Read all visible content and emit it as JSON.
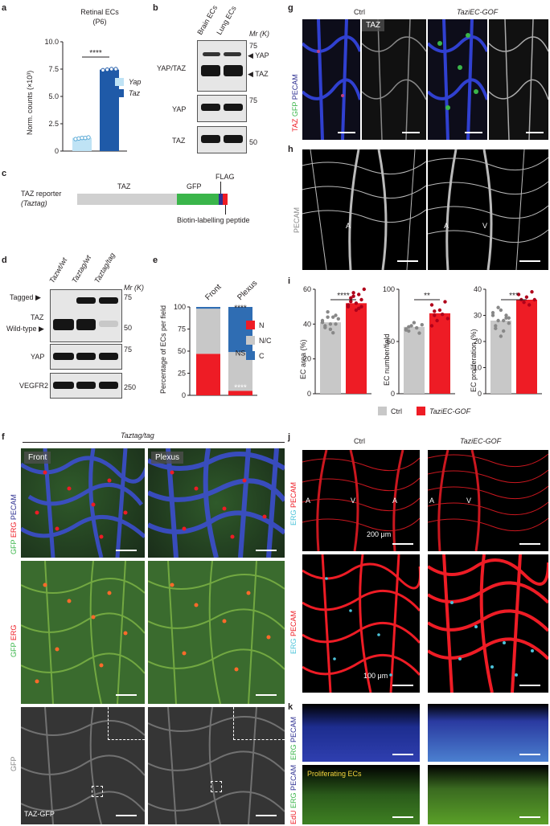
{
  "panels": {
    "a": {
      "letter": "a",
      "title": "Retinal ECs",
      "subtitle": "(P6)",
      "ylabel": "Norm. counts (×10³)",
      "sig": "****",
      "legend": [
        {
          "name": "Yap",
          "color": "#bfe3f5"
        },
        {
          "name": "Taz",
          "color": "#1f5aa8"
        }
      ]
    },
    "b": {
      "letter": "b",
      "lanes": [
        "Brain ECs",
        "Lung ECs"
      ],
      "mr": "Mr (K)",
      "rows": [
        {
          "label": "YAP/TAZ",
          "arrows": [
            "YAP",
            "TAZ"
          ],
          "markers": [
            "75"
          ]
        },
        {
          "label": "YAP",
          "markers": [
            "75"
          ]
        },
        {
          "label": "TAZ",
          "markers": [
            "50"
          ]
        }
      ]
    },
    "c": {
      "letter": "c",
      "title1": "TAZ reporter",
      "title2": "(Taztag)",
      "seg_taz": "TAZ",
      "seg_gfp": "GFP",
      "flag": "FLAG",
      "biotin": "Biotin-labelling peptide"
    },
    "d": {
      "letter": "d",
      "lanes": [
        "Tazwt/wt",
        "Taztag/wt",
        "Taztag/tag"
      ],
      "mr": "Mr (K)",
      "tagged": "Tagged",
      "wildtype": "Wild-type",
      "rows": [
        {
          "label": "TAZ",
          "markers": [
            "75",
            "50"
          ]
        },
        {
          "label": "YAP",
          "markers": [
            "75"
          ]
        },
        {
          "label": "VEGFR2",
          "markers": [
            "250"
          ]
        }
      ]
    },
    "e": {
      "letter": "e",
      "ylabel": "Percentage of ECs per field",
      "groups": [
        "Front",
        "Plexus"
      ],
      "sig_top": "****",
      "sig_mid": "NS",
      "sig_bot": "****",
      "legend": [
        {
          "name": "N",
          "color": "#ee1c25"
        },
        {
          "name": "N/C",
          "color": "#c8c8c8"
        },
        {
          "name": "C",
          "color": "#2f6db3"
        }
      ]
    },
    "f": {
      "letter": "f",
      "genotype": "Taztag/tag",
      "tags": [
        "Front",
        "Plexus"
      ],
      "row_labels": [
        "GFP ERG PECAM",
        "GFP ERG",
        "GFP"
      ],
      "bottom_tag": "TAZ-GFP"
    },
    "g": {
      "letter": "g",
      "ctrl": "Ctrl",
      "gof": "TaziEC-GOF",
      "tag": "TAZ",
      "row_label": "TAZ GFP PECAM"
    },
    "h": {
      "letter": "h",
      "row_label": "PECAM",
      "a_lbl": "A",
      "v_lbl": "V"
    },
    "i": {
      "letter": "i",
      "plots": [
        {
          "ylabel": "EC area (%)",
          "sig": "****"
        },
        {
          "ylabel": "EC number/field",
          "sig": "**"
        },
        {
          "ylabel": "EC proliferation (%)",
          "sig": "***"
        }
      ],
      "legend": [
        {
          "name": "Ctrl",
          "color": "#c8c8c8"
        },
        {
          "name": "TaziEC-GOF",
          "color": "#ee1c25"
        }
      ]
    },
    "j": {
      "letter": "j",
      "ctrl": "Ctrl",
      "gof": "TaziEC-GOF",
      "row_label": "ERG PECAM",
      "scale1": "200 μm",
      "scale2": "100 μm",
      "a_lbl": "A",
      "v_lbl": "V"
    },
    "k": {
      "letter": "k",
      "row_label1": "ERG PECAM",
      "row_label2": "EdU ERG PECAM",
      "prolif": "Proliferating ECs"
    }
  },
  "chart_data": [
    {
      "type": "bar",
      "panel": "a",
      "title": "Retinal ECs",
      "subtitle": "(P6)",
      "ylabel": "Norm. counts (×10³)",
      "categories": [
        "Yap",
        "Taz"
      ],
      "values": [
        1.2,
        7.45
      ],
      "points": [
        [
          1.1,
          1.15,
          1.2,
          1.2,
          1.25
        ],
        [
          7.4,
          7.45,
          7.5,
          7.5
        ]
      ],
      "ylim": [
        0,
        10
      ],
      "yticks": [
        "0",
        "2.5",
        "5.0",
        "7.5",
        "10.0"
      ],
      "colors": [
        "#bfe3f5",
        "#1f5aa8"
      ]
    },
    {
      "type": "bar",
      "panel": "e",
      "stacked": true,
      "ylabel": "Percentage of ECs per field",
      "categories": [
        "Front",
        "Plexus"
      ],
      "series": [
        {
          "name": "N",
          "values": [
            47,
            5
          ],
          "color": "#ee1c25"
        },
        {
          "name": "N/C",
          "values": [
            51,
            44
          ],
          "color": "#c8c8c8"
        },
        {
          "name": "C",
          "values": [
            2,
            51
          ],
          "color": "#2f6db3"
        }
      ],
      "ylim": [
        0,
        100
      ],
      "yticks": [
        "0",
        "25",
        "50",
        "75",
        "100"
      ]
    },
    {
      "type": "bar",
      "panel": "i1",
      "ylabel": "EC area (%)",
      "categories": [
        "Ctrl",
        "TaziEC-GOF"
      ],
      "values": [
        41,
        52
      ],
      "ylim": [
        0,
        60
      ],
      "yticks": [
        "0",
        "20",
        "40",
        "60"
      ],
      "points": [
        [
          42,
          38,
          44,
          40,
          35,
          45,
          43,
          41,
          39,
          47,
          37,
          44,
          40
        ],
        [
          50,
          55,
          58,
          52,
          49,
          54,
          60,
          51,
          53,
          56,
          48,
          57,
          50
        ]
      ]
    },
    {
      "type": "bar",
      "panel": "i2",
      "ylabel": "EC number/field",
      "categories": [
        "Ctrl",
        "TaziEC-GOF"
      ],
      "values": [
        64,
        77
      ],
      "ylim": [
        0,
        100
      ],
      "yticks": [
        "0",
        "50",
        "100"
      ],
      "points": [
        [
          62,
          60,
          65,
          68,
          63,
          58,
          66,
          61,
          64
        ],
        [
          85,
          75,
          70,
          80,
          76,
          88,
          72,
          65,
          79
        ]
      ]
    },
    {
      "type": "bar",
      "panel": "i3",
      "ylabel": "EC proliferation (%)",
      "categories": [
        "Ctrl",
        "TaziEC-GOF"
      ],
      "values": [
        28,
        36
      ],
      "ylim": [
        0,
        40
      ],
      "yticks": [
        "0",
        "10",
        "20",
        "30",
        "40"
      ],
      "points": [
        [
          30,
          26,
          28,
          32,
          24,
          29,
          27,
          31,
          25,
          33,
          22,
          28,
          30,
          29
        ],
        [
          38,
          36,
          35,
          37,
          34,
          39,
          36
        ]
      ]
    }
  ]
}
